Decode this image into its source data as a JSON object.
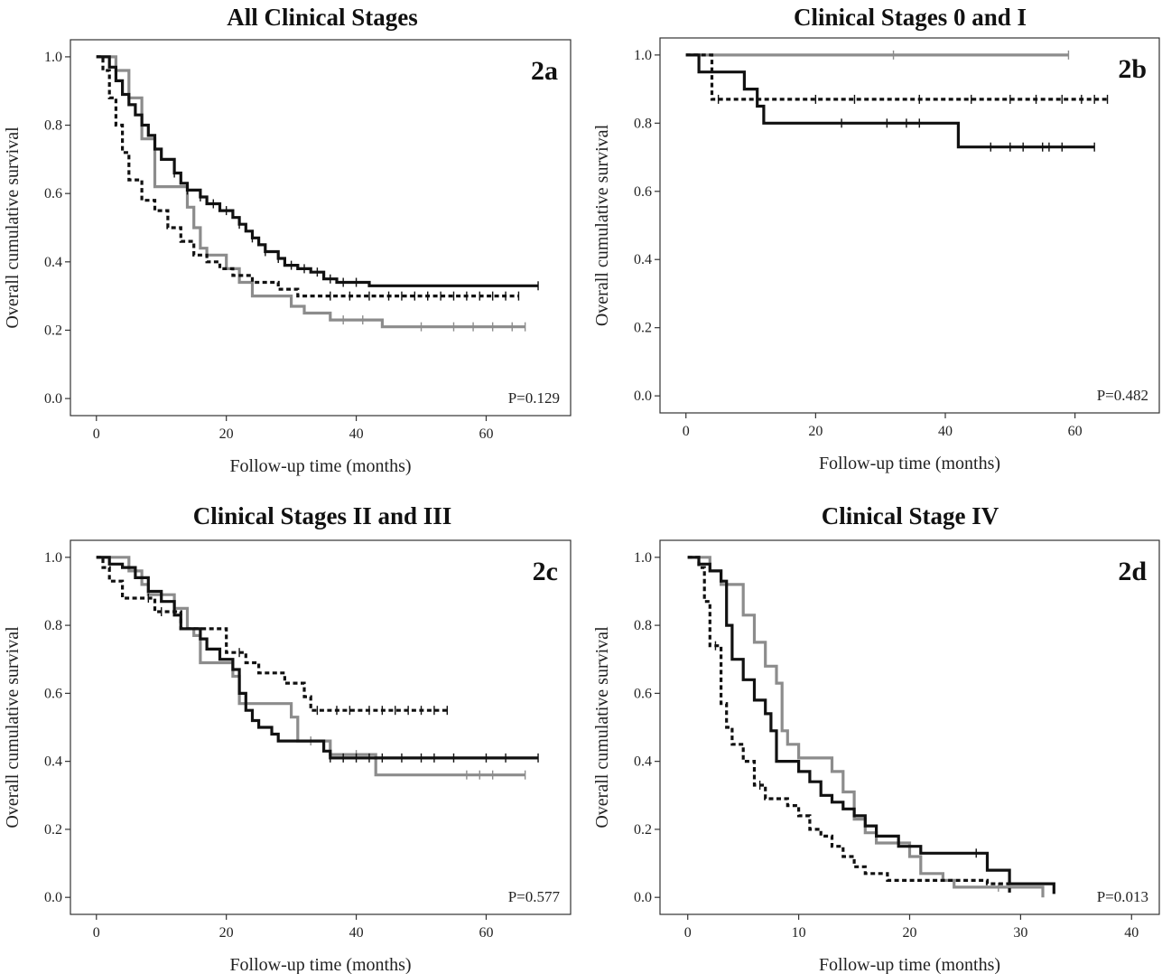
{
  "chart_data": [
    {
      "type": "line",
      "title": "All Clinical Stages",
      "panel_label": "2a",
      "p_value": "P=0.129",
      "xlabel": "Follow-up time (months)",
      "ylabel": "Overall cumulative survival",
      "xlim": [
        -4,
        73
      ],
      "ylim": [
        -0.05,
        1.05
      ],
      "xticks": [
        0,
        20,
        40,
        60
      ],
      "yticks": [
        0.0,
        0.2,
        0.4,
        0.6,
        0.8,
        1.0
      ],
      "series": [
        {
          "style": "gray",
          "color": "#8c8c8c",
          "points": [
            [
              0,
              1.0
            ],
            [
              3,
              0.96
            ],
            [
              5,
              0.88
            ],
            [
              7,
              0.76
            ],
            [
              9,
              0.62
            ],
            [
              13,
              0.62
            ],
            [
              14,
              0.56
            ],
            [
              15,
              0.5
            ],
            [
              16,
              0.44
            ],
            [
              17,
              0.42
            ],
            [
              20,
              0.38
            ],
            [
              22,
              0.34
            ],
            [
              24,
              0.3
            ],
            [
              28,
              0.3
            ],
            [
              30,
              0.27
            ],
            [
              32,
              0.25
            ],
            [
              36,
              0.23
            ],
            [
              43,
              0.23
            ],
            [
              44,
              0.21
            ],
            [
              66,
              0.21
            ]
          ],
          "censor": [
            38,
            41,
            50,
            55,
            58,
            61,
            64,
            66
          ]
        },
        {
          "style": "dotted",
          "color": "#111111",
          "points": [
            [
              0,
              1.0
            ],
            [
              1,
              0.96
            ],
            [
              2,
              0.88
            ],
            [
              3,
              0.8
            ],
            [
              4,
              0.72
            ],
            [
              5,
              0.64
            ],
            [
              7,
              0.58
            ],
            [
              9,
              0.55
            ],
            [
              11,
              0.5
            ],
            [
              13,
              0.46
            ],
            [
              15,
              0.42
            ],
            [
              17,
              0.4
            ],
            [
              19,
              0.38
            ],
            [
              21,
              0.36
            ],
            [
              24,
              0.34
            ],
            [
              28,
              0.32
            ],
            [
              31,
              0.3
            ],
            [
              65,
              0.3
            ]
          ],
          "censor": [
            36,
            39,
            42,
            45,
            47,
            49,
            51,
            53,
            55,
            57,
            59,
            61,
            63,
            65
          ]
        },
        {
          "style": "solid",
          "color": "#111111",
          "points": [
            [
              0,
              1.0
            ],
            [
              2,
              0.97
            ],
            [
              3,
              0.93
            ],
            [
              4,
              0.89
            ],
            [
              5,
              0.86
            ],
            [
              6,
              0.83
            ],
            [
              7,
              0.8
            ],
            [
              8,
              0.77
            ],
            [
              9,
              0.73
            ],
            [
              10,
              0.7
            ],
            [
              12,
              0.66
            ],
            [
              13,
              0.63
            ],
            [
              14,
              0.61
            ],
            [
              16,
              0.59
            ],
            [
              17,
              0.57
            ],
            [
              19,
              0.55
            ],
            [
              21,
              0.53
            ],
            [
              22,
              0.51
            ],
            [
              23,
              0.49
            ],
            [
              24,
              0.47
            ],
            [
              25,
              0.45
            ],
            [
              26,
              0.43
            ],
            [
              28,
              0.41
            ],
            [
              29,
              0.39
            ],
            [
              31,
              0.38
            ],
            [
              33,
              0.37
            ],
            [
              35,
              0.35
            ],
            [
              37,
              0.34
            ],
            [
              42,
              0.33
            ],
            [
              68,
              0.33
            ]
          ],
          "censor": [
            12,
            14,
            16,
            18,
            20,
            22,
            24,
            26,
            28,
            30,
            32,
            34,
            36,
            38,
            40,
            68
          ]
        }
      ]
    },
    {
      "type": "line",
      "title": "Clinical Stages 0 and I",
      "panel_label": "2b",
      "p_value": "P=0.482",
      "xlabel": "Follow-up time (months)",
      "ylabel": "Overall cumulative survival",
      "xlim": [
        -4,
        73
      ],
      "ylim": [
        -0.05,
        1.05
      ],
      "xticks": [
        0,
        20,
        40,
        60
      ],
      "yticks": [
        0.0,
        0.2,
        0.4,
        0.6,
        0.8,
        1.0
      ],
      "series": [
        {
          "style": "gray",
          "color": "#8c8c8c",
          "points": [
            [
              0,
              1.0
            ],
            [
              59,
              1.0
            ]
          ],
          "censor": [
            32,
            59
          ]
        },
        {
          "style": "dotted",
          "color": "#111111",
          "points": [
            [
              0,
              1.0
            ],
            [
              4,
              1.0
            ],
            [
              4,
              0.87
            ],
            [
              65,
              0.87
            ]
          ],
          "censor": [
            5,
            20,
            26,
            36,
            44,
            50,
            54,
            58,
            61,
            63,
            65
          ]
        },
        {
          "style": "solid",
          "color": "#111111",
          "points": [
            [
              0,
              1.0
            ],
            [
              2,
              0.95
            ],
            [
              9,
              0.9
            ],
            [
              11,
              0.85
            ],
            [
              12,
              0.8
            ],
            [
              42,
              0.73
            ],
            [
              63,
              0.73
            ]
          ],
          "censor": [
            24,
            31,
            34,
            36,
            47,
            50,
            52,
            55,
            56,
            58,
            63
          ]
        }
      ]
    },
    {
      "type": "line",
      "title": "Clinical Stages II and III",
      "panel_label": "2c",
      "p_value": "P=0.577",
      "xlabel": "Follow-up time (months)",
      "ylabel": "Overall cumulative survival",
      "xlim": [
        -4,
        73
      ],
      "ylim": [
        -0.05,
        1.05
      ],
      "xticks": [
        0,
        20,
        40,
        60
      ],
      "yticks": [
        0.0,
        0.2,
        0.4,
        0.6,
        0.8,
        1.0
      ],
      "series": [
        {
          "style": "gray",
          "color": "#8c8c8c",
          "points": [
            [
              0,
              1.0
            ],
            [
              5,
              0.96
            ],
            [
              7,
              0.92
            ],
            [
              8,
              0.89
            ],
            [
              12,
              0.85
            ],
            [
              14,
              0.79
            ],
            [
              15,
              0.77
            ],
            [
              16,
              0.69
            ],
            [
              21,
              0.65
            ],
            [
              22,
              0.57
            ],
            [
              29,
              0.57
            ],
            [
              30,
              0.53
            ],
            [
              31,
              0.46
            ],
            [
              36,
              0.42
            ],
            [
              43,
              0.42
            ],
            [
              43,
              0.36
            ],
            [
              66,
              0.36
            ]
          ],
          "censor": [
            33,
            40,
            57,
            59,
            61,
            66
          ]
        },
        {
          "style": "dotted",
          "color": "#111111",
          "points": [
            [
              0,
              1.0
            ],
            [
              1,
              0.97
            ],
            [
              2,
              0.93
            ],
            [
              4,
              0.88
            ],
            [
              9,
              0.84
            ],
            [
              13,
              0.79
            ],
            [
              20,
              0.72
            ],
            [
              23,
              0.69
            ],
            [
              25,
              0.66
            ],
            [
              29,
              0.63
            ],
            [
              32,
              0.59
            ],
            [
              33,
              0.55
            ],
            [
              54,
              0.55
            ]
          ],
          "censor": [
            8,
            10,
            22,
            34,
            37,
            39,
            42,
            44,
            46,
            48,
            50,
            52,
            54
          ]
        },
        {
          "style": "solid",
          "color": "#111111",
          "points": [
            [
              0,
              1.0
            ],
            [
              2,
              0.98
            ],
            [
              4,
              0.97
            ],
            [
              6,
              0.94
            ],
            [
              8,
              0.9
            ],
            [
              10,
              0.87
            ],
            [
              12,
              0.83
            ],
            [
              13,
              0.79
            ],
            [
              16,
              0.76
            ],
            [
              17,
              0.73
            ],
            [
              19,
              0.7
            ],
            [
              21,
              0.67
            ],
            [
              22,
              0.6
            ],
            [
              23,
              0.55
            ],
            [
              24,
              0.52
            ],
            [
              25,
              0.5
            ],
            [
              27,
              0.48
            ],
            [
              28,
              0.46
            ],
            [
              35,
              0.43
            ],
            [
              36,
              0.41
            ],
            [
              68,
              0.41
            ]
          ],
          "censor": [
            36,
            38,
            40,
            42,
            44,
            47,
            50,
            52,
            55,
            60,
            63,
            68
          ]
        }
      ]
    },
    {
      "type": "line",
      "title": "Clinical Stage IV",
      "panel_label": "2d",
      "p_value": "P=0.013",
      "xlabel": "Follow-up time (months)",
      "ylabel": "Overall cumulative survival",
      "xlim": [
        -2.5,
        42.5
      ],
      "ylim": [
        -0.05,
        1.05
      ],
      "xticks": [
        0,
        10,
        20,
        30,
        40
      ],
      "yticks": [
        0.0,
        0.2,
        0.4,
        0.6,
        0.8,
        1.0
      ],
      "series": [
        {
          "style": "gray",
          "color": "#8c8c8c",
          "points": [
            [
              0,
              1.0
            ],
            [
              2,
              0.96
            ],
            [
              3,
              0.92
            ],
            [
              5,
              0.83
            ],
            [
              6,
              0.75
            ],
            [
              7,
              0.68
            ],
            [
              8,
              0.63
            ],
            [
              8.5,
              0.49
            ],
            [
              9,
              0.45
            ],
            [
              10,
              0.41
            ],
            [
              13,
              0.37
            ],
            [
              14,
              0.31
            ],
            [
              15,
              0.23
            ],
            [
              16,
              0.19
            ],
            [
              17,
              0.16
            ],
            [
              20,
              0.12
            ],
            [
              21,
              0.07
            ],
            [
              23,
              0.05
            ],
            [
              24,
              0.03
            ],
            [
              32,
              0.0
            ]
          ],
          "censor": [
            28
          ]
        },
        {
          "style": "dotted",
          "color": "#111111",
          "points": [
            [
              0,
              1.0
            ],
            [
              1,
              0.97
            ],
            [
              1.5,
              0.87
            ],
            [
              2,
              0.74
            ],
            [
              3,
              0.57
            ],
            [
              3.5,
              0.5
            ],
            [
              4,
              0.45
            ],
            [
              5,
              0.4
            ],
            [
              6,
              0.33
            ],
            [
              7,
              0.29
            ],
            [
              9,
              0.27
            ],
            [
              10,
              0.24
            ],
            [
              11,
              0.2
            ],
            [
              12,
              0.18
            ],
            [
              13,
              0.15
            ],
            [
              14,
              0.12
            ],
            [
              15,
              0.09
            ],
            [
              16,
              0.07
            ],
            [
              18,
              0.05
            ],
            [
              27,
              0.04
            ],
            [
              29,
              0.01
            ]
          ],
          "censor": [
            2.5,
            6.5
          ]
        },
        {
          "style": "solid",
          "color": "#111111",
          "points": [
            [
              0,
              1.0
            ],
            [
              1,
              0.98
            ],
            [
              2,
              0.96
            ],
            [
              3,
              0.93
            ],
            [
              3.5,
              0.8
            ],
            [
              4,
              0.7
            ],
            [
              5,
              0.64
            ],
            [
              6,
              0.58
            ],
            [
              7,
              0.54
            ],
            [
              7.5,
              0.49
            ],
            [
              8,
              0.4
            ],
            [
              10,
              0.37
            ],
            [
              11,
              0.34
            ],
            [
              12,
              0.3
            ],
            [
              13,
              0.28
            ],
            [
              14,
              0.26
            ],
            [
              15,
              0.24
            ],
            [
              16,
              0.21
            ],
            [
              17,
              0.18
            ],
            [
              19,
              0.15
            ],
            [
              21,
              0.13
            ],
            [
              27,
              0.08
            ],
            [
              29,
              0.04
            ],
            [
              33,
              0.01
            ]
          ],
          "censor": [
            26
          ]
        }
      ]
    }
  ]
}
